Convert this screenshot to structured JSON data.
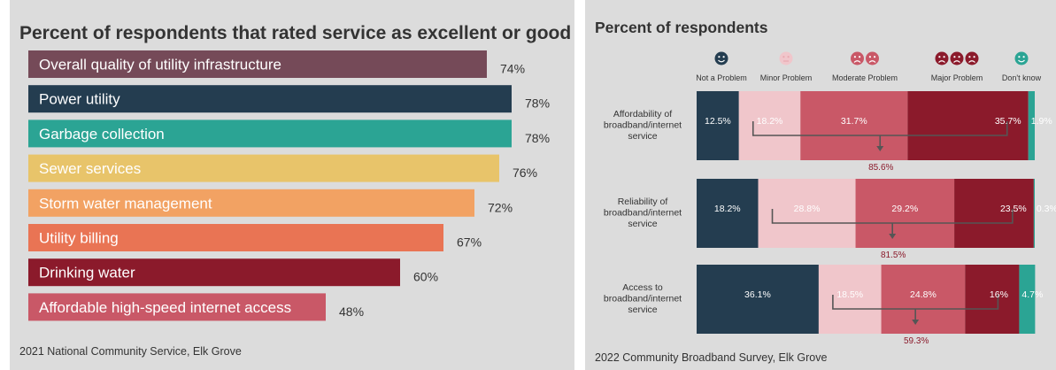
{
  "left": {
    "source": "2021 National Community Service, Elk Grove",
    "chart_data": {
      "type": "bar",
      "orientation": "horizontal",
      "title": "Percent of respondents that rated service as excellent or good",
      "categories": [
        "Overall quality of utility infrastructure",
        "Power utility",
        "Garbage collection",
        "Sewer services",
        "Storm water management",
        "Utility billing",
        "Drinking water",
        "Affordable high-speed internet access"
      ],
      "values": [
        74,
        78,
        78,
        76,
        72,
        67,
        60,
        48
      ],
      "value_labels": [
        "74%",
        "78%",
        "78%",
        "76%",
        "72%",
        "67%",
        "60%",
        "48%"
      ],
      "colors": [
        "#754a58",
        "#243d50",
        "#2ba494",
        "#e8c46a",
        "#f2a263",
        "#e97454",
        "#8b1a2b",
        "#c95867"
      ],
      "xlim": [
        0,
        100
      ],
      "grid": false
    }
  },
  "right": {
    "source": "2022 Community Broadband Survey, Elk Grove",
    "chart_data": {
      "type": "bar",
      "orientation": "horizontal",
      "stacked": true,
      "title": "Percent of respondents",
      "legend_position": "top",
      "categories": [
        "Affordability of broadband/internet service",
        "Reliability of broadband/internet service",
        "Access to broadband/internet service"
      ],
      "series": [
        {
          "name": "Not a Problem",
          "color": "#243d50",
          "icon": "smiley-face-icon",
          "values": [
            12.5,
            18.2,
            36.1
          ],
          "labels": [
            "12.5%",
            "18.2%",
            "36.1%"
          ]
        },
        {
          "name": "Minor Problem",
          "color": "#f0c6cb",
          "icon": "neutral-face-icon",
          "values": [
            18.2,
            28.8,
            18.5
          ],
          "labels": [
            "18.2%",
            "28.8%",
            "18.5%"
          ]
        },
        {
          "name": "Moderate Problem",
          "color": "#c95867",
          "icon": "frown-face-icon",
          "values": [
            31.7,
            29.2,
            24.8
          ],
          "labels": [
            "31.7%",
            "29.2%",
            "24.8%"
          ]
        },
        {
          "name": "Major Problem",
          "color": "#8b1a2b",
          "icon": "angry-face-icon",
          "values": [
            35.7,
            23.5,
            16
          ],
          "labels": [
            "35.7%",
            "23.5%",
            "16%"
          ]
        },
        {
          "name": "Don't know",
          "color": "#2ba494",
          "icon": "confused-face-icon",
          "values": [
            1.9,
            0.3,
            4.7
          ],
          "labels": [
            "1.9%",
            "0.3%",
            "4.7%"
          ]
        }
      ],
      "annotations": [
        "85.6%",
        "81.5%",
        "59.3%"
      ],
      "annotation_note_values": [
        85.6,
        81.5,
        59.3
      ],
      "xlim": [
        0,
        100
      ]
    }
  }
}
